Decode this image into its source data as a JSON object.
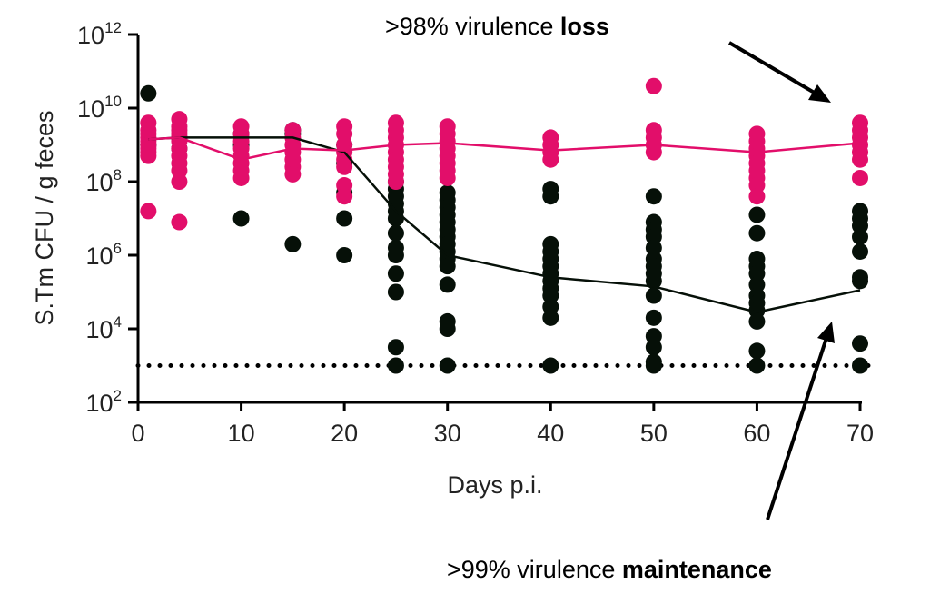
{
  "chart_data": {
    "type": "scatter",
    "xlabel": "Days p.i.",
    "ylabel": "S.Tm CFU / g feces",
    "xlim": [
      0,
      70
    ],
    "ylim_log10": [
      2,
      12
    ],
    "x_ticks": [
      "0",
      "10",
      "20",
      "30",
      "40",
      "50",
      "60",
      "70"
    ],
    "y_ticks": [
      {
        "base": "10",
        "exp": "2"
      },
      {
        "base": "10",
        "exp": "4"
      },
      {
        "base": "10",
        "exp": "6"
      },
      {
        "base": "10",
        "exp": "8"
      },
      {
        "base": "10",
        "exp": "10"
      },
      {
        "base": "10",
        "exp": "12"
      }
    ],
    "detection_limit_log10": 3,
    "colors": {
      "pink": "#e20e6a",
      "black": "#061008"
    },
    "series": [
      {
        "name": "virulence loss group",
        "color": "#e20e6a",
        "median_log10": {
          "1": 9.15,
          "4": 9.2,
          "10": 8.6,
          "15": 8.9,
          "20": 8.85,
          "25": 9.0,
          "30": 9.05,
          "40": 8.85,
          "50": 9.0,
          "60": 8.8,
          "70": 9.05
        },
        "points_log10": {
          "1": [
            9.6,
            9.4,
            9.3,
            9.2,
            9.1,
            9.0,
            8.9,
            8.8,
            8.7,
            7.2
          ],
          "4": [
            9.7,
            9.5,
            9.4,
            9.3,
            9.2,
            9.1,
            8.9,
            8.7,
            8.5,
            8.3,
            8.0,
            6.9
          ],
          "10": [
            9.5,
            9.3,
            9.1,
            8.9,
            8.7,
            8.5,
            8.3,
            8.1
          ],
          "15": [
            9.4,
            9.2,
            9.0,
            8.8,
            8.6,
            8.4,
            8.2
          ],
          "20": [
            9.5,
            9.3,
            9.0,
            8.8,
            8.6,
            8.4,
            7.9,
            7.6
          ],
          "25": [
            9.6,
            9.4,
            9.2,
            9.0,
            8.8,
            8.6,
            8.4,
            8.2,
            8.0
          ],
          "30": [
            9.5,
            9.3,
            9.1,
            8.9,
            8.7,
            8.5,
            8.3,
            8.1
          ],
          "40": [
            9.2,
            9.0,
            8.8,
            8.6
          ],
          "50": [
            10.6,
            9.4,
            9.2,
            9.0,
            8.8
          ],
          "60": [
            9.3,
            9.1,
            8.9,
            8.7,
            8.5,
            8.3,
            8.1,
            7.9,
            7.6
          ],
          "70": [
            9.6,
            9.4,
            9.2,
            9.0,
            8.8,
            8.6,
            8.1
          ]
        }
      },
      {
        "name": "virulence maintenance group",
        "color": "#061008",
        "median_log10": {
          "1": 9.15,
          "4": 9.2,
          "10": 9.2,
          "15": 9.2,
          "20": 8.8,
          "25": 7.2,
          "30": 6.0,
          "40": 5.4,
          "50": 5.15,
          "60": 4.45,
          "70": 5.05
        },
        "points_log10": {
          "1": [
            10.4,
            9.0
          ],
          "4": [
            9.2,
            8.9
          ],
          "10": [
            9.3,
            9.0,
            7.0
          ],
          "15": [
            9.4,
            9.3,
            6.3
          ],
          "20": [
            9.0,
            8.5,
            7.7,
            7.0,
            6.0
          ],
          "25": [
            8.0,
            7.8,
            7.6,
            7.4,
            7.2,
            7.0,
            6.6,
            6.2,
            6.0,
            5.5,
            5.0,
            3.5,
            3.0
          ],
          "30": [
            7.7,
            7.5,
            7.3,
            7.1,
            6.9,
            6.7,
            6.5,
            6.3,
            6.1,
            5.9,
            5.7,
            5.2,
            4.2,
            4.0,
            3.0
          ],
          "40": [
            7.8,
            7.6,
            6.3,
            6.1,
            5.9,
            5.7,
            5.5,
            5.3,
            5.1,
            4.9,
            4.6,
            4.3,
            3.0
          ],
          "50": [
            7.6,
            6.9,
            6.7,
            6.5,
            6.2,
            5.9,
            5.7,
            5.5,
            5.3,
            4.9,
            4.3,
            3.8,
            3.5,
            3.1,
            3.0
          ],
          "60": [
            7.1,
            6.6,
            5.9,
            5.7,
            5.5,
            5.2,
            4.9,
            4.7,
            4.5,
            4.2,
            3.4,
            3.0
          ],
          "70": [
            7.2,
            7.0,
            6.8,
            6.5,
            6.1,
            5.4,
            5.3,
            3.6,
            3.0
          ]
        }
      }
    ],
    "annotations": [
      {
        "prefix": ">98% virulence ",
        "bold": "loss"
      },
      {
        "prefix": ">99% virulence ",
        "bold": "maintenance"
      }
    ]
  }
}
